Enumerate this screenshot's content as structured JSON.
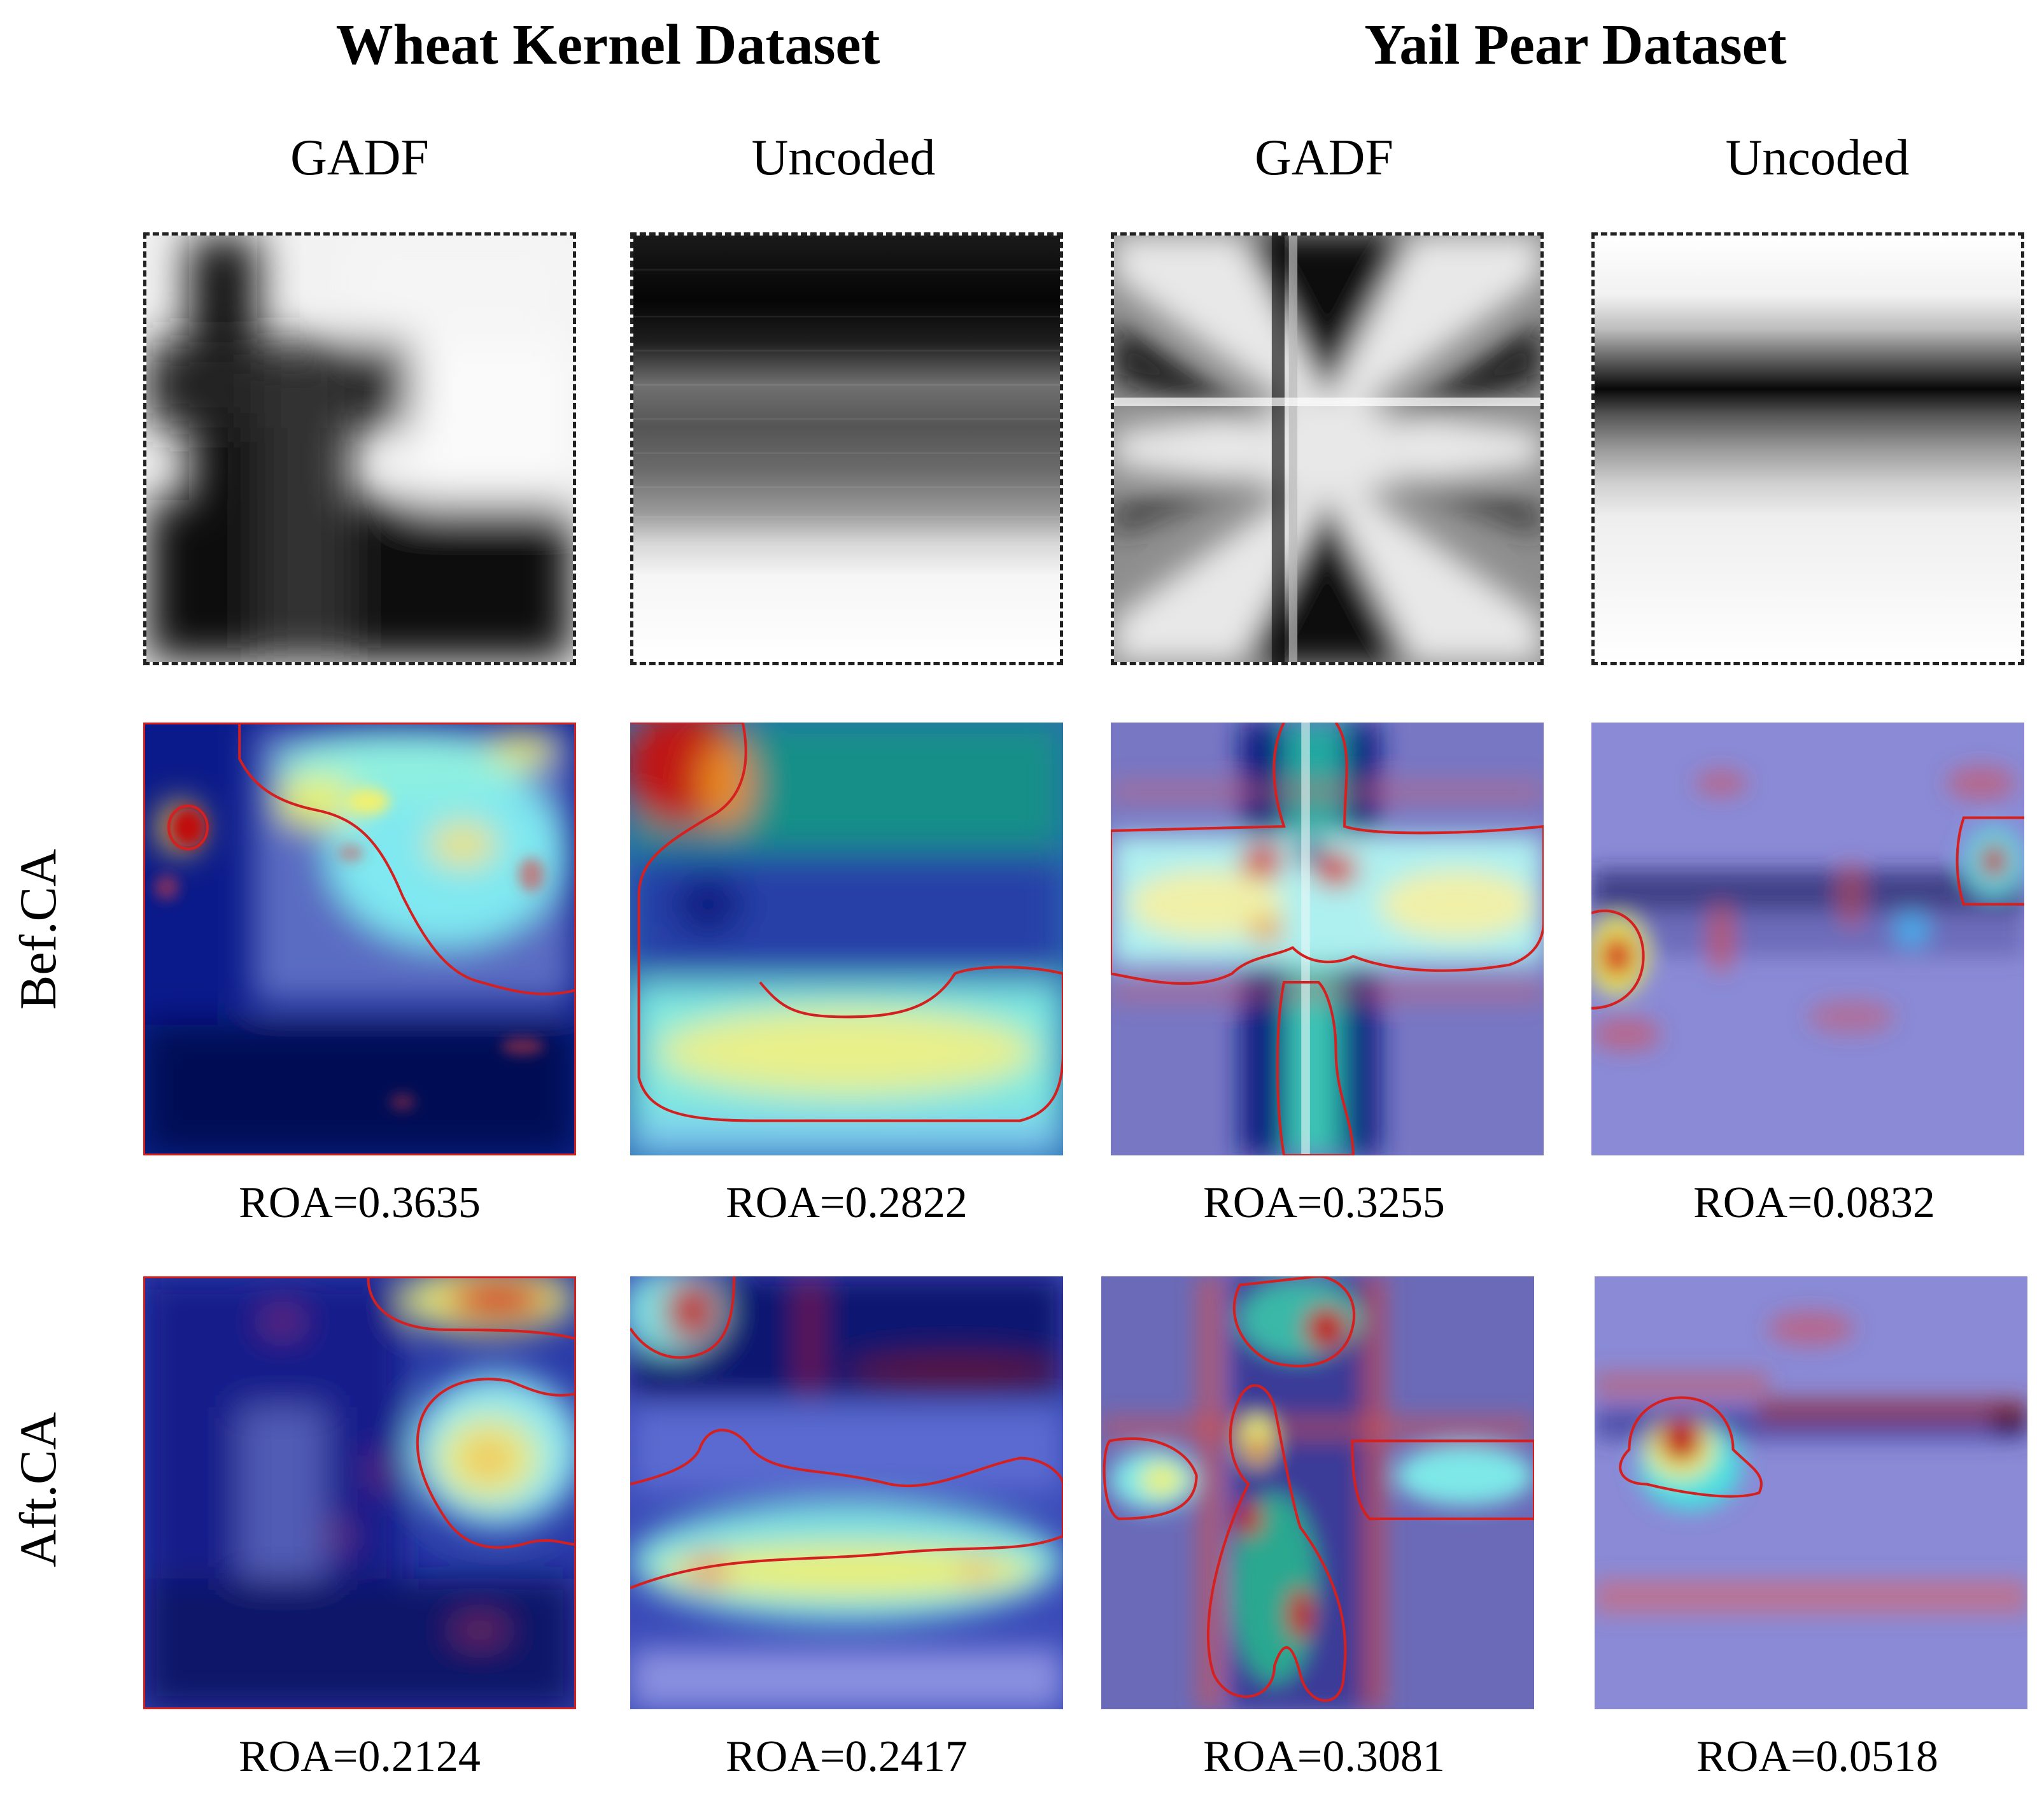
{
  "datasets": [
    {
      "title": "Wheat Kernel Dataset"
    },
    {
      "title": "Yail Pear Dataset"
    }
  ],
  "columns": [
    "GADF",
    "Uncoded",
    "GADF",
    "Uncoded"
  ],
  "rows": {
    "raw": "",
    "before": "Bef.CA",
    "after": "Aft.CA"
  },
  "roa_before": [
    "ROA=0.3635",
    "ROA=0.2822",
    "ROA=0.3255",
    "ROA=0.0832"
  ],
  "roa_after": [
    "ROA=0.2124",
    "ROA=0.2417",
    "ROA=0.3081",
    "ROA=0.0518"
  ],
  "colors": {
    "contour": "#d61f1f",
    "overlay_tint": "#8a8ad6"
  }
}
